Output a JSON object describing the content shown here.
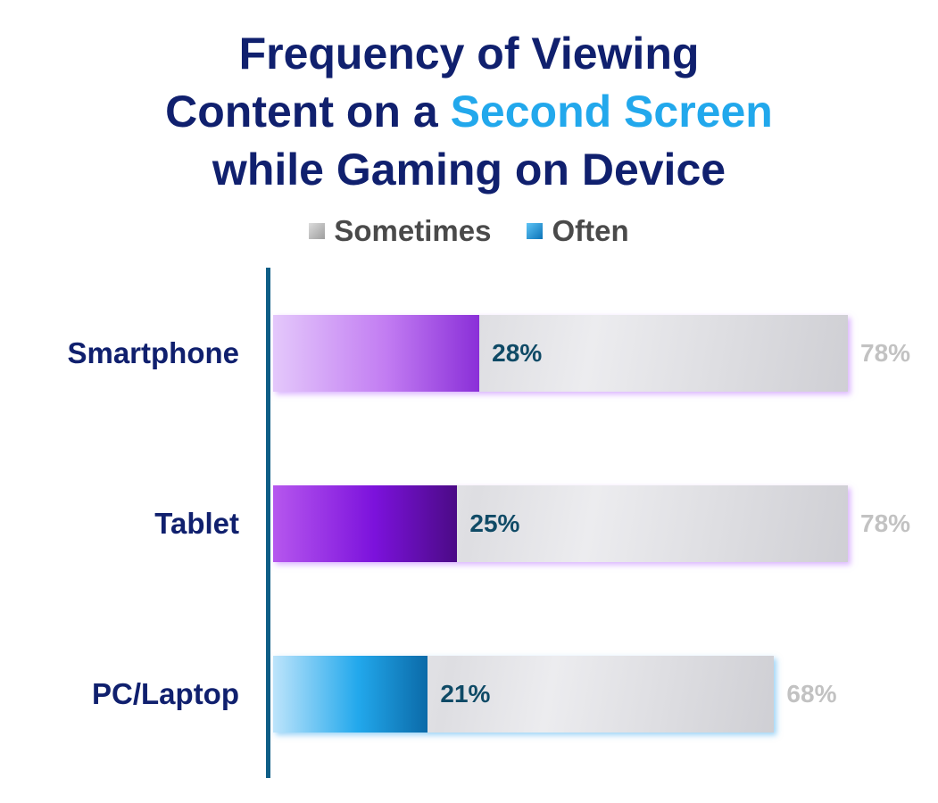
{
  "title": {
    "line1": "Frequency of Viewing",
    "line2_prefix": "Content on a ",
    "line2_accent": "Second Screen",
    "line3": "while Gaming on Device"
  },
  "colors": {
    "title": "#10206e",
    "accent": "#22a8ec",
    "axis": "#0f5e86",
    "inner_label": "#0f4a66",
    "outer_label": "#c2c2c2"
  },
  "chart_data": {
    "type": "bar",
    "orientation": "horizontal",
    "stacked": false,
    "overlapped": true,
    "title": "Frequency of Viewing Content on a Second Screen while Gaming on Device",
    "legend_position": "top",
    "categories": [
      "Smartphone",
      "Tablet",
      "PC/Laptop"
    ],
    "series": [
      {
        "name": "Sometimes",
        "values": [
          78,
          78,
          68
        ],
        "labels": [
          "78%",
          "78%",
          "68%"
        ]
      },
      {
        "name": "Often",
        "values": [
          28,
          25,
          21
        ],
        "labels": [
          "28%",
          "25%",
          "21%"
        ]
      }
    ],
    "often_colors": [
      [
        "#e4c8fb",
        "#c27cf2",
        "#8a2fd8"
      ],
      [
        "#b657ee",
        "#7c12dc",
        "#4b0a86"
      ],
      [
        "#bde4fb",
        "#22a8ec",
        "#0b6aa8"
      ]
    ],
    "value_unit": "%",
    "xlim": [
      0,
      78
    ],
    "grid": false
  }
}
